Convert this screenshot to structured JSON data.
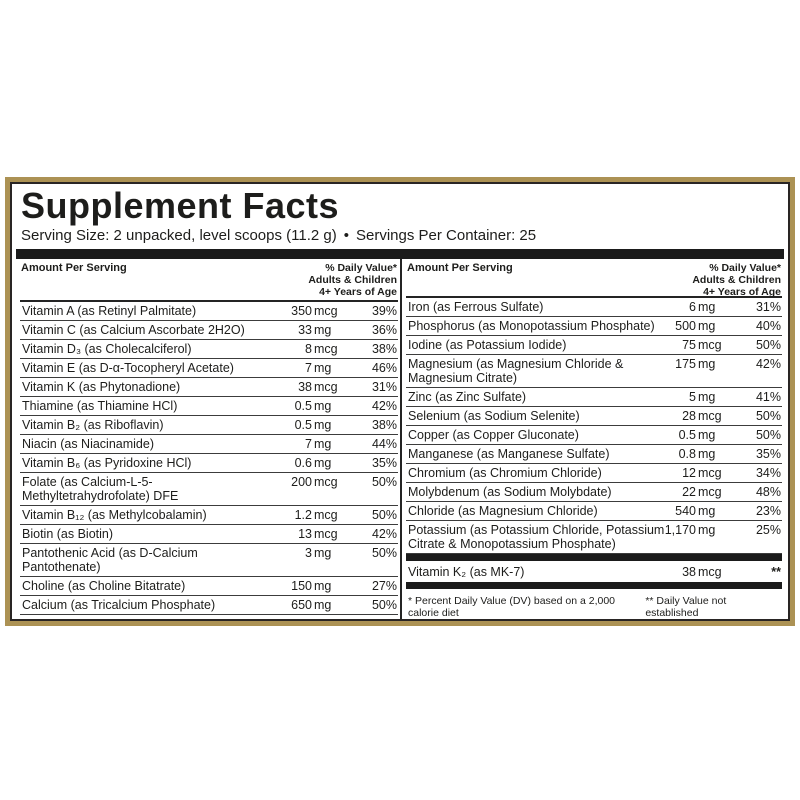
{
  "label": {
    "title": "Supplement Facts",
    "serving_size": "Serving Size: 2 unpacked, level scoops (11.2 g)",
    "separator_bullet": "•",
    "servings_per_container": "Servings Per Container: 25",
    "column_header": {
      "amount": "Amount Per Serving",
      "daily_value_line1": "% Daily Value*",
      "daily_value_line2": "Adults & Children",
      "daily_value_line3": "4+ Years of Age"
    },
    "left_column": {
      "rows": [
        {
          "name": "Vitamin A (as Retinyl Palmitate)",
          "value": "350",
          "unit": "mcg",
          "dv": "39%"
        },
        {
          "name": "Vitamin C (as Calcium Ascorbate 2H2O)",
          "value": "33",
          "unit": "mg",
          "dv": "36%"
        },
        {
          "name": "Vitamin D₃ (as Cholecalciferol)",
          "value": "8",
          "unit": "mcg",
          "dv": "38%"
        },
        {
          "name": "Vitamin E (as D-α-Tocopheryl Acetate)",
          "value": "7",
          "unit": "mg",
          "dv": "46%"
        },
        {
          "name": "Vitamin K (as Phytonadione)",
          "value": "38",
          "unit": "mcg",
          "dv": "31%"
        },
        {
          "name": "Thiamine (as Thiamine HCl)",
          "value": "0.5",
          "unit": "mg",
          "dv": "42%"
        },
        {
          "name": "Vitamin B₂ (as Riboflavin)",
          "value": "0.5",
          "unit": "mg",
          "dv": "38%"
        },
        {
          "name": "Niacin (as Niacinamide)",
          "value": "7",
          "unit": "mg",
          "dv": "44%"
        },
        {
          "name": "Vitamin B₆ (as Pyridoxine HCl)",
          "value": "0.6",
          "unit": "mg",
          "dv": "35%"
        },
        {
          "name": "Folate (as Calcium-L-5-Methyltetrahydrofolate) DFE",
          "value": "200",
          "unit": "mcg",
          "dv": "50%"
        },
        {
          "name": "Vitamin B₁₂ (as Methylcobalamin)",
          "value": "1.2",
          "unit": "mcg",
          "dv": "50%"
        },
        {
          "name": "Biotin (as Biotin)",
          "value": "13",
          "unit": "mcg",
          "dv": "42%"
        },
        {
          "name": "Pantothenic Acid (as D-Calcium Pantothenate)",
          "value": "3",
          "unit": "mg",
          "dv": "50%"
        },
        {
          "name": "Choline (as Choline Bitatrate)",
          "value": "150",
          "unit": "mg",
          "dv": "27%"
        },
        {
          "name": "Calcium (as Tricalcium Phosphate)",
          "value": "650",
          "unit": "mg",
          "dv": "50%"
        }
      ]
    },
    "right_column": {
      "rows": [
        {
          "name": "Iron (as Ferrous Sulfate)",
          "value": "6",
          "unit": "mg",
          "dv": "31%"
        },
        {
          "name": "Phosphorus (as Monopotassium Phosphate)",
          "value": "500",
          "unit": "mg",
          "dv": "40%"
        },
        {
          "name": "Iodine (as Potassium Iodide)",
          "value": "75",
          "unit": "mcg",
          "dv": "50%"
        },
        {
          "name": "Magnesium (as Magnesium Chloride & Magnesium Citrate)",
          "value": "175",
          "unit": "mg",
          "dv": "42%"
        },
        {
          "name": "Zinc (as Zinc Sulfate)",
          "value": "5",
          "unit": "mg",
          "dv": "41%"
        },
        {
          "name": "Selenium (as Sodium Selenite)",
          "value": "28",
          "unit": "mcg",
          "dv": "50%"
        },
        {
          "name": "Copper (as Copper Gluconate)",
          "value": "0.5",
          "unit": "mg",
          "dv": "50%"
        },
        {
          "name": "Manganese (as Manganese Sulfate)",
          "value": "0.8",
          "unit": "mg",
          "dv": "35%"
        },
        {
          "name": "Chromium (as Chromium Chloride)",
          "value": "12",
          "unit": "mcg",
          "dv": "34%"
        },
        {
          "name": "Molybdenum (as Sodium Molybdate)",
          "value": "22",
          "unit": "mcg",
          "dv": "48%"
        },
        {
          "name": "Chloride (as Magnesium Chloride)",
          "value": "540",
          "unit": "mg",
          "dv": "23%"
        },
        {
          "name": "Potassium (as Potassium Chloride, Potassium Citrate & Monopotassium Phosphate)",
          "value": "1,170",
          "unit": "mg",
          "dv": "25%"
        }
      ],
      "vitamin_k2_row": {
        "name": "Vitamin K₂ (as MK-7)",
        "value": "38",
        "unit": "mcg",
        "dv": "**"
      },
      "footnote_daily_value": "* Percent Daily Value (DV) based on a 2,000 calorie diet",
      "footnote_not_established": "** Daily Value not established"
    },
    "colors": {
      "border_gold": "#ac9254",
      "bar_black": "#1b1b1b",
      "text": "#1d1d1b"
    }
  }
}
